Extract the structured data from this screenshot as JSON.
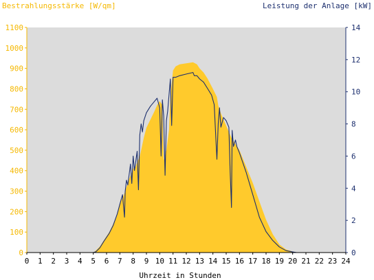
{
  "colors": {
    "plot_background": "#dcdcdc",
    "irradiance_fill": "#ffca2c",
    "power_line": "#1c2f6e",
    "left_axis": "#f5b800",
    "right_axis": "#1c2f6e",
    "x_axis": "#000000"
  },
  "chart_data": {
    "type": "area",
    "title_left": "Bestrahlungsstärke [W/qm]",
    "title_right": "Leistung der Anlage [kW]",
    "xlabel": "Uhrzeit in Stunden",
    "xlim": [
      0,
      24
    ],
    "ylim_left": [
      0,
      1100
    ],
    "ylim_right": [
      0,
      14
    ],
    "x_ticks": [
      "0",
      "1",
      "2",
      "3",
      "4",
      "5",
      "6",
      "7",
      "8",
      "9",
      "10",
      "11",
      "12",
      "13",
      "14",
      "15",
      "16",
      "17",
      "18",
      "19",
      "20",
      "21",
      "22",
      "23",
      "24"
    ],
    "y_left_ticks": [
      "0",
      "100",
      "200",
      "300",
      "400",
      "500",
      "600",
      "700",
      "800",
      "900",
      "1000",
      "1100"
    ],
    "y_right_ticks": [
      "0",
      "2",
      "4",
      "6",
      "8",
      "10",
      "12",
      "14"
    ],
    "grid": false,
    "series": [
      {
        "name": "Bestrahlungsstärke [W/qm]",
        "axis": "left",
        "kind": "area",
        "x": [
          0,
          5.0,
          5.2,
          5.5,
          5.8,
          6.2,
          6.5,
          6.8,
          7.0,
          7.3,
          7.5,
          7.7,
          7.9,
          8.0,
          8.2,
          8.3,
          8.5,
          8.6,
          8.8,
          9.0,
          9.3,
          9.6,
          9.8,
          10.0,
          10.2,
          10.3,
          10.5,
          10.7,
          10.8,
          11.0,
          11.2,
          11.5,
          12.0,
          12.5,
          12.8,
          13.0,
          13.3,
          13.6,
          14.0,
          14.3,
          14.4,
          14.6,
          14.8,
          15.0,
          15.2,
          15.4,
          15.6,
          15.8,
          16.0,
          16.5,
          17.0,
          17.5,
          18.0,
          18.5,
          19.0,
          19.5,
          20.0,
          20.3,
          24
        ],
        "y": [
          0,
          0,
          10,
          30,
          60,
          100,
          140,
          190,
          240,
          280,
          320,
          360,
          390,
          410,
          420,
          440,
          470,
          500,
          560,
          610,
          650,
          690,
          720,
          740,
          720,
          450,
          500,
          600,
          760,
          890,
          910,
          920,
          925,
          930,
          920,
          900,
          880,
          850,
          800,
          760,
          720,
          680,
          650,
          620,
          590,
          560,
          540,
          520,
          500,
          420,
          340,
          250,
          160,
          90,
          40,
          15,
          5,
          0,
          0
        ]
      },
      {
        "name": "Leistung der Anlage [kW]",
        "axis": "right",
        "kind": "line",
        "x": [
          0,
          5.0,
          5.2,
          5.5,
          5.8,
          6.2,
          6.5,
          6.8,
          7.0,
          7.2,
          7.35,
          7.4,
          7.5,
          7.6,
          7.8,
          7.9,
          8.0,
          8.1,
          8.3,
          8.4,
          8.5,
          8.6,
          8.7,
          8.8,
          9.0,
          9.3,
          9.6,
          9.8,
          10.0,
          10.1,
          10.2,
          10.3,
          10.4,
          10.5,
          10.6,
          10.8,
          10.9,
          11.0,
          11.2,
          11.5,
          12.0,
          12.5,
          12.6,
          12.8,
          13.0,
          13.3,
          13.6,
          13.9,
          14.1,
          14.2,
          14.3,
          14.4,
          14.5,
          14.6,
          14.8,
          15.0,
          15.2,
          15.3,
          15.4,
          15.45,
          15.55,
          15.7,
          15.8,
          16.0,
          16.5,
          17.0,
          17.5,
          18.0,
          18.5,
          19.0,
          19.5,
          20.0,
          20.3,
          24
        ],
        "y": [
          0,
          0,
          0.05,
          0.3,
          0.7,
          1.2,
          1.7,
          2.4,
          3.0,
          3.6,
          2.2,
          3.8,
          4.5,
          4.2,
          5.5,
          4.3,
          6.0,
          5.1,
          6.3,
          3.9,
          7.3,
          8.0,
          7.5,
          8.2,
          8.7,
          9.1,
          9.4,
          9.6,
          9.0,
          6.0,
          9.5,
          8.5,
          4.8,
          8.2,
          8.8,
          10.8,
          7.9,
          10.9,
          10.9,
          11.0,
          11.1,
          11.2,
          11.0,
          11.0,
          10.8,
          10.6,
          10.2,
          9.8,
          9.2,
          7.5,
          5.8,
          8.0,
          9.0,
          7.8,
          8.4,
          8.2,
          7.8,
          5.0,
          2.8,
          7.6,
          6.6,
          7.0,
          6.6,
          6.2,
          5.0,
          3.6,
          2.2,
          1.3,
          0.75,
          0.35,
          0.12,
          0.04,
          0,
          0
        ]
      }
    ]
  }
}
